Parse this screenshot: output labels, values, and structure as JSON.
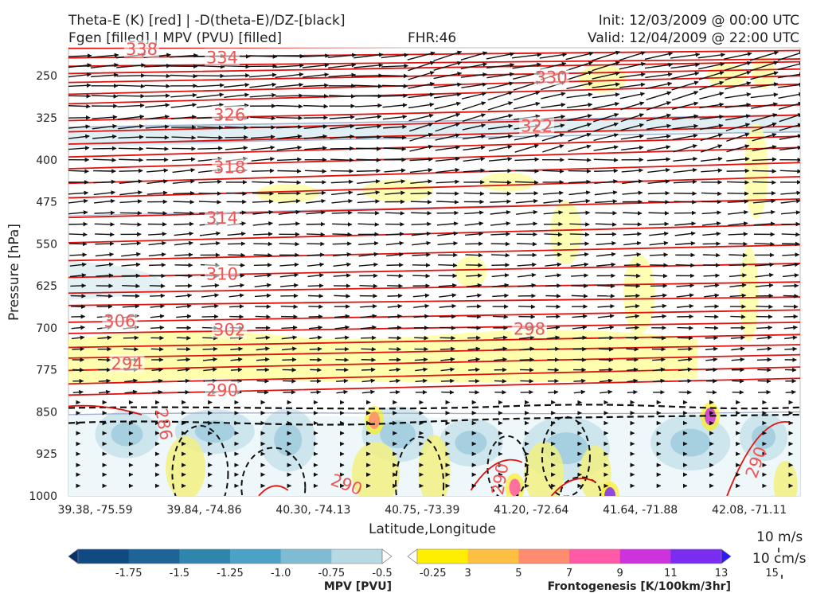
{
  "header": {
    "title_left_line1": "Theta-E (K) [red] | -D(theta-E)/DZ-[black]",
    "title_left_line2": "Fgen [filled] | MPV (PVU) [filled]",
    "fhr": "FHR:46",
    "init": "Init: 12/03/2009 @ 00:00 UTC",
    "valid": "Valid: 12/04/2009 @ 22:00 UTC"
  },
  "chart_data": {
    "type": "contour",
    "xlabel": "Latitude,Longitude",
    "ylabel": "Pressure [hPa]",
    "y_axis": "pressure, inverted (top 200 hPa, bottom 1000 hPa)",
    "ylim": [
      1000,
      200
    ],
    "x_ticks": [
      "39.38, -75.59",
      "39.84, -74.86",
      "40.30, -74.13",
      "40.75, -73.39",
      "41.20, -72.64",
      "41.64, -71.88",
      "42.08, -71.11"
    ],
    "y_ticks": [
      250,
      325,
      400,
      475,
      550,
      625,
      700,
      775,
      850,
      925,
      1000
    ],
    "theta_e_contour_labels": [
      {
        "text": "338",
        "pos": 0.1,
        "p": 203
      },
      {
        "text": "334",
        "pos": 0.21,
        "p": 218
      },
      {
        "text": "330",
        "pos": 0.66,
        "p": 253
      },
      {
        "text": "326",
        "pos": 0.22,
        "p": 320
      },
      {
        "text": "322",
        "pos": 0.64,
        "p": 340
      },
      {
        "text": "318",
        "pos": 0.22,
        "p": 414
      },
      {
        "text": "314",
        "pos": 0.21,
        "p": 504
      },
      {
        "text": "310",
        "pos": 0.21,
        "p": 604
      },
      {
        "text": "306",
        "pos": 0.07,
        "p": 688
      },
      {
        "text": "302",
        "pos": 0.22,
        "p": 704
      },
      {
        "text": "298",
        "pos": 0.63,
        "p": 702
      },
      {
        "text": "294",
        "pos": 0.08,
        "p": 764
      },
      {
        "text": "290",
        "pos": 0.21,
        "p": 812
      },
      {
        "text": "286",
        "pos": 0.13,
        "p": 872
      },
      {
        "text": "290",
        "pos": 0.38,
        "p": 980
      },
      {
        "text": "290",
        "pos": 0.59,
        "p": 970
      },
      {
        "text": "290",
        "pos": 0.94,
        "p": 940
      }
    ],
    "mpv_colorbar": {
      "title": "MPV [PVU]",
      "ticks": [
        "-1.75",
        "-1.5",
        "-1.25",
        "-1.0",
        "-0.75",
        "-0.5",
        "-0.25"
      ],
      "colors": [
        "#08306b",
        "#0f4a82",
        "#1f6496",
        "#2f86ad",
        "#4aa3c6",
        "#7fbcd4",
        "#b7d9e3",
        "#ffffff"
      ]
    },
    "fgen_colorbar": {
      "title": "Frontogenesis [K/100km/3hr]",
      "ticks": [
        "3",
        "5",
        "7",
        "9",
        "11",
        "13",
        "15"
      ],
      "colors": [
        "#ffffff",
        "#ffee00",
        "#ffbf40",
        "#ff8c6e",
        "#ff5aa8",
        "#cc33dd",
        "#7a2df0",
        "#2c1af8"
      ]
    },
    "wind_reference": {
      "horizontal": "10 m/s",
      "vertical": "10 cm/s"
    }
  }
}
